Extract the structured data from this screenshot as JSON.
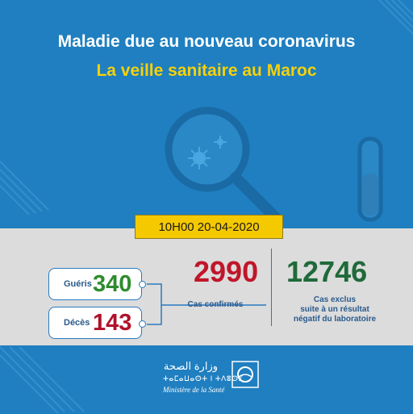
{
  "header": {
    "line1": "Maladie due au nouveau coronavirus",
    "line2": "La veille sanitaire au Maroc"
  },
  "datetime": "10H00   20-04-2020",
  "stats": {
    "recovered": {
      "label": "Guéris",
      "value": "340",
      "color": "#2e8b2e"
    },
    "deaths": {
      "label": "Décès",
      "value": "143",
      "color": "#b0102a"
    },
    "confirmed": {
      "value": "2990",
      "label": "Cas confirmés",
      "color": "#c0162a"
    },
    "excluded": {
      "value": "12746",
      "label_lines": [
        "Cas exclus",
        "suite à un résultat",
        "négatif du laboratoire"
      ],
      "color": "#1f6a3a"
    }
  },
  "footer": {
    "arabic": "وزارة الصحة",
    "tifinagh": "ⵜⴰⵎⴰⵡⴰⵙⵜ ⵏ ⵜⴷⵓⵙⵉ",
    "french": "Ministère de la Santé"
  },
  "colors": {
    "background": "#1f7fc0",
    "accent_yellow": "#f5c900",
    "band": "#dcdcdc"
  }
}
